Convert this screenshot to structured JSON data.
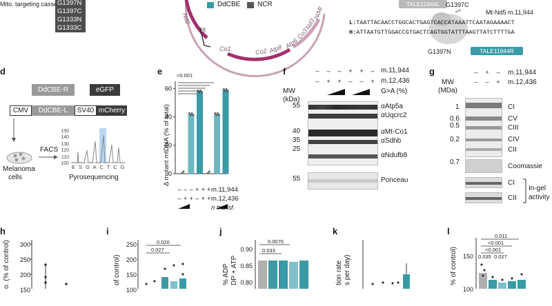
{
  "panel_top": {
    "cassette_label": "Mito. targeting cassette",
    "guides": [
      "G1397N",
      "G1397C",
      "G1333N",
      "G1333C"
    ],
    "legend": [
      {
        "label": "DdCBE",
        "color": "#3a9aa6"
      },
      {
        "label": "NCR",
        "color": "#555555"
      }
    ],
    "genome_labels": [
      "Co1",
      "Co2",
      "Atp8",
      "Atp6",
      "Co3",
      "Nd3",
      "Nd4l",
      "Nd2"
    ],
    "tale_left": "TALE11944L",
    "tale_right": "TALE11944R",
    "g_top": "G1397C",
    "g_bottom": "G1397N",
    "mutation": "Mt-Nd5 m.11,944",
    "seq_L_prefix": "L:",
    "seq_L": "TAATTACAACCTGGCACTGAGTCACCATAAATTCAATAGAAAACT",
    "seq_H_prefix": "H:",
    "seq_H": "ATTAATGTTGGACCGTGACTCAGTGGTATTTAAGTTATCTTTTGA"
  },
  "panel_d": {
    "label": "d",
    "ddcbe_r": "DdCBE-R",
    "egfp": "eGFP",
    "cmv": "CMV",
    "ddcbe_l": "DdCBE-L",
    "sv40": "SV40",
    "mcherry": "mCherry",
    "facs": "FACS",
    "melanoma": "Melanoma",
    "cells": "cells",
    "pyro": "Pyrosequencing",
    "pyro_ticks": [
      "150",
      "140",
      "130",
      "120",
      "110",
      "100"
    ],
    "pyro_bases": "E S G A C T C G"
  },
  "panel_e": {
    "label": "e",
    "pvalue": "<0.001",
    "ylabel": "Δ mutant mtDNA (% of total)",
    "yticks": [
      "60",
      "40",
      "20",
      "0"
    ],
    "row_labels": [
      "m.11,944",
      "m.12,436",
      "n transf."
    ],
    "row1": [
      "–",
      "–",
      "–",
      "+",
      "+",
      "+"
    ],
    "row2": [
      "–",
      "+",
      "+",
      "–",
      "+",
      "+"
    ]
  },
  "chart_data": {
    "type": "bar",
    "title": "",
    "xlabel": "",
    "ylabel": "Δ mutant mtDNA (% of total)",
    "ylim": [
      0,
      65
    ],
    "categories": [
      "1",
      "2",
      "3",
      "4",
      "5",
      "6"
    ],
    "values": [
      0,
      42,
      58,
      0,
      42,
      59
    ]
  },
  "panel_f": {
    "label": "f",
    "rows": [
      "m.11,944",
      "m.12,436",
      "G>A (%)"
    ],
    "row1": [
      "–",
      "–",
      "–",
      "+",
      "+",
      "–"
    ],
    "row2": [
      "–",
      "+",
      "+",
      "–",
      "–",
      "+"
    ],
    "mw": "MW",
    "kda": "(kDa)",
    "markers": [
      "55",
      "40",
      "35",
      "25",
      "55"
    ],
    "bands": [
      "αAtp5a",
      "αUqcrc2",
      "αMt-Co1",
      "αSdhb",
      "αNdufb8",
      "Ponceau"
    ]
  },
  "panel_g": {
    "label": "g",
    "rows": [
      "m.11,944",
      "m.12,436"
    ],
    "row1": [
      "–",
      "+",
      "–"
    ],
    "row2": [
      "–",
      "–",
      "+"
    ],
    "mw": "MW",
    "mda": "(MDa)",
    "markers": [
      "1",
      "0.6",
      "0.5",
      "0.2",
      "0.7"
    ],
    "complexes": [
      "CI",
      "CV",
      "CIII",
      "CIV",
      "CII",
      "Coomassie",
      "CI",
      "CII"
    ],
    "ingel1": "In-gel",
    "ingel2": "activity"
  },
  "panel_h": {
    "label": "h",
    "ylabel": "o. (% of control)",
    "yticks": [
      "300",
      "250",
      "200",
      "150"
    ]
  },
  "panel_i": {
    "label": "i",
    "ylabel": "of control)",
    "yticks": [
      "250",
      "200",
      "150",
      "100"
    ],
    "pvals": [
      "0.020",
      "0.027"
    ]
  },
  "panel_j": {
    "label": "j",
    "ylabel": "% ADP",
    "ylabel2": "DP + ATP",
    "yticks": [
      "0.90",
      "0.85",
      "0.80"
    ],
    "pvals": [
      "0.0070",
      "0.033"
    ]
  },
  "panel_k": {
    "label": "k",
    "ylabel": "tion rate",
    "ylabel2": "s per day)"
  },
  "panel_l": {
    "label": "l",
    "ylabel": "% of control)",
    "yticks": [
      "150",
      "100"
    ],
    "pvals": [
      "0.011",
      "<0.001",
      "<0.001",
      "0.035",
      "0.027"
    ]
  }
}
